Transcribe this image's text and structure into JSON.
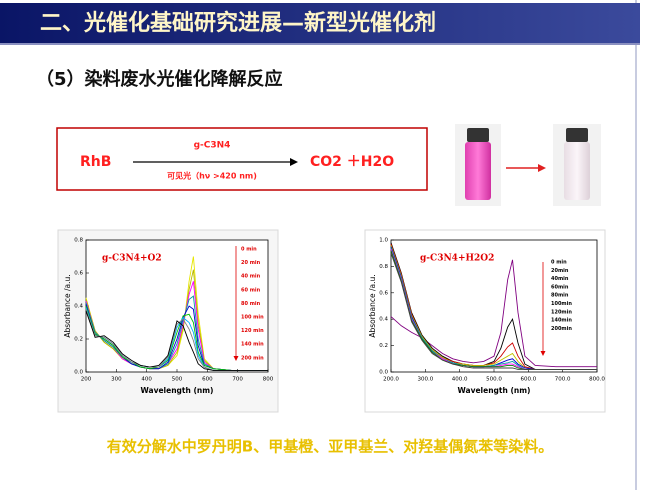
{
  "header": {
    "title": "二、光催化基础研究进展—新型光催化剂"
  },
  "subtitle": "（5）染料废水光催化降解反应",
  "reaction": {
    "reactant": "RhB",
    "catalyst": "g-C3N4",
    "condition": "可见光（hν >420 nm)",
    "products": "CO2 ＋H2O"
  },
  "chart_data": [
    {
      "type": "line",
      "xlabel": "Wavelength (nm)",
      "ylabel": "Absorbance /a.u.",
      "annotation": "g-C3N4+O2",
      "x": [
        200,
        230,
        260,
        290,
        320,
        350,
        380,
        410,
        440,
        470,
        500,
        520,
        540,
        554,
        570,
        590,
        620,
        680,
        740,
        800
      ],
      "xlim": [
        200,
        800
      ],
      "ylim": [
        0,
        0.8
      ],
      "xticks": [
        200,
        300,
        400,
        500,
        600,
        700,
        800
      ],
      "yticks": [
        {
          "value": 0,
          "label": "0.0"
        },
        0.2,
        0.4,
        0.6,
        0.8
      ],
      "series": [
        {
          "name": "0 min",
          "color": "#e6e600",
          "values": [
            0.45,
            0.25,
            0.18,
            0.14,
            0.08,
            0.05,
            0.03,
            0.02,
            0.02,
            0.04,
            0.1,
            0.25,
            0.55,
            0.7,
            0.35,
            0.08,
            0.02,
            0.01,
            0.01,
            0.01
          ]
        },
        {
          "name": "20 min",
          "color": "#b8b800",
          "values": [
            0.44,
            0.25,
            0.18,
            0.14,
            0.08,
            0.05,
            0.03,
            0.02,
            0.02,
            0.04,
            0.12,
            0.27,
            0.5,
            0.62,
            0.3,
            0.07,
            0.02,
            0.01,
            0.01,
            0.01
          ]
        },
        {
          "name": "40 min",
          "color": "#ff00ff",
          "values": [
            0.43,
            0.24,
            0.19,
            0.15,
            0.08,
            0.05,
            0.03,
            0.02,
            0.02,
            0.05,
            0.14,
            0.29,
            0.47,
            0.55,
            0.26,
            0.06,
            0.02,
            0.01,
            0.01,
            0.01
          ]
        },
        {
          "name": "60 min",
          "color": "#00a0a0",
          "values": [
            0.42,
            0.24,
            0.19,
            0.15,
            0.09,
            0.05,
            0.03,
            0.02,
            0.02,
            0.05,
            0.17,
            0.31,
            0.44,
            0.46,
            0.2,
            0.05,
            0.02,
            0.01,
            0.01,
            0.01
          ]
        },
        {
          "name": "80 min",
          "color": "#0000cc",
          "values": [
            0.41,
            0.23,
            0.2,
            0.16,
            0.09,
            0.05,
            0.03,
            0.02,
            0.02,
            0.06,
            0.2,
            0.33,
            0.4,
            0.38,
            0.16,
            0.04,
            0.02,
            0.01,
            0.01,
            0.01
          ]
        },
        {
          "name": "100 min",
          "color": "#00c000",
          "values": [
            0.4,
            0.23,
            0.2,
            0.16,
            0.09,
            0.06,
            0.03,
            0.02,
            0.03,
            0.07,
            0.24,
            0.34,
            0.35,
            0.3,
            0.12,
            0.04,
            0.02,
            0.01,
            0.01,
            0.01
          ]
        },
        {
          "name": "120 min",
          "color": "#00b0ff",
          "values": [
            0.39,
            0.22,
            0.21,
            0.17,
            0.1,
            0.06,
            0.04,
            0.03,
            0.03,
            0.08,
            0.27,
            0.33,
            0.3,
            0.24,
            0.1,
            0.03,
            0.01,
            0.01,
            0.01,
            0.01
          ]
        },
        {
          "name": "140 min",
          "color": "#808080",
          "values": [
            0.38,
            0.22,
            0.21,
            0.17,
            0.1,
            0.06,
            0.04,
            0.03,
            0.03,
            0.09,
            0.29,
            0.32,
            0.26,
            0.19,
            0.08,
            0.03,
            0.01,
            0.01,
            0.01,
            0.01
          ]
        },
        {
          "name": "200 min",
          "color": "#000000",
          "values": [
            0.37,
            0.21,
            0.22,
            0.18,
            0.11,
            0.07,
            0.04,
            0.03,
            0.04,
            0.1,
            0.31,
            0.28,
            0.18,
            0.12,
            0.05,
            0.02,
            0.01,
            0.01,
            0.01,
            0.01
          ]
        }
      ]
    },
    {
      "type": "line",
      "xlabel": "Wavelength (nm)",
      "ylabel": "Absorbance /a.u.",
      "annotation": "g-C3N4+H2O2",
      "x": [
        200,
        230,
        260,
        290,
        320,
        350,
        380,
        410,
        440,
        470,
        500,
        520,
        540,
        554,
        570,
        590,
        620,
        680,
        740,
        800
      ],
      "xlim": [
        200,
        800
      ],
      "ylim": [
        0,
        1
      ],
      "xticks": [
        {
          "value": 200,
          "label": "200.0"
        },
        {
          "value": 300,
          "label": "300.0"
        },
        {
          "value": 400,
          "label": "400.0"
        },
        {
          "value": 500,
          "label": "500.0"
        },
        {
          "value": 600,
          "label": "600.0"
        },
        {
          "value": 700,
          "label": "700.0"
        },
        {
          "value": 800,
          "label": "800.0"
        }
      ],
      "yticks": [
        {
          "value": 0,
          "label": "0.0"
        },
        0.2,
        0.4,
        0.6,
        0.8,
        {
          "value": 1,
          "label": "1.0"
        }
      ],
      "series": [
        {
          "name": "0 min",
          "color": "#800080",
          "values": [
            0.42,
            0.35,
            0.3,
            0.26,
            0.2,
            0.14,
            0.1,
            0.08,
            0.07,
            0.08,
            0.12,
            0.3,
            0.7,
            0.85,
            0.45,
            0.12,
            0.05,
            0.04,
            0.04,
            0.04
          ]
        },
        {
          "name": "20min",
          "color": "#000000",
          "values": [
            0.98,
            0.75,
            0.45,
            0.28,
            0.18,
            0.12,
            0.08,
            0.06,
            0.05,
            0.05,
            0.08,
            0.18,
            0.34,
            0.4,
            0.22,
            0.06,
            0.02,
            0.02,
            0.02,
            0.02
          ]
        },
        {
          "name": "40min",
          "color": "#cc0000",
          "values": [
            0.97,
            0.74,
            0.44,
            0.27,
            0.17,
            0.11,
            0.08,
            0.06,
            0.05,
            0.05,
            0.07,
            0.12,
            0.19,
            0.22,
            0.12,
            0.04,
            0.02,
            0.02,
            0.02,
            0.02
          ]
        },
        {
          "name": "60min",
          "color": "#c0c000",
          "values": [
            0.96,
            0.73,
            0.43,
            0.27,
            0.17,
            0.11,
            0.07,
            0.06,
            0.05,
            0.05,
            0.06,
            0.09,
            0.12,
            0.14,
            0.08,
            0.03,
            0.02,
            0.02,
            0.02,
            0.02
          ]
        },
        {
          "name": "80min",
          "color": "#0000cc",
          "values": [
            0.95,
            0.72,
            0.42,
            0.26,
            0.16,
            0.1,
            0.07,
            0.05,
            0.04,
            0.04,
            0.05,
            0.07,
            0.09,
            0.1,
            0.06,
            0.03,
            0.02,
            0.02,
            0.02,
            0.02
          ]
        },
        {
          "name": "100min",
          "color": "#00a0a0",
          "values": [
            0.94,
            0.71,
            0.41,
            0.26,
            0.16,
            0.1,
            0.07,
            0.05,
            0.04,
            0.04,
            0.05,
            0.06,
            0.07,
            0.08,
            0.05,
            0.02,
            0.02,
            0.02,
            0.02,
            0.02
          ]
        },
        {
          "name": "120min",
          "color": "#ff00ff",
          "values": [
            0.93,
            0.7,
            0.4,
            0.25,
            0.15,
            0.1,
            0.06,
            0.05,
            0.04,
            0.04,
            0.04,
            0.05,
            0.06,
            0.06,
            0.04,
            0.02,
            0.02,
            0.02,
            0.02,
            0.02
          ]
        },
        {
          "name": "140min",
          "color": "#008000",
          "values": [
            0.92,
            0.69,
            0.39,
            0.25,
            0.15,
            0.09,
            0.06,
            0.05,
            0.04,
            0.04,
            0.04,
            0.04,
            0.05,
            0.05,
            0.03,
            0.02,
            0.02,
            0.02,
            0.02,
            0.02
          ]
        },
        {
          "name": "200min",
          "color": "#404040",
          "values": [
            0.9,
            0.68,
            0.38,
            0.24,
            0.14,
            0.09,
            0.06,
            0.04,
            0.03,
            0.03,
            0.03,
            0.03,
            0.03,
            0.03,
            0.02,
            0.02,
            0.02,
            0.02,
            0.02,
            0.02
          ]
        }
      ]
    }
  ],
  "conclusion": "有效分解水中罗丹明B、甲基橙、亚甲基兰、对羟基偶氮苯等染料。"
}
